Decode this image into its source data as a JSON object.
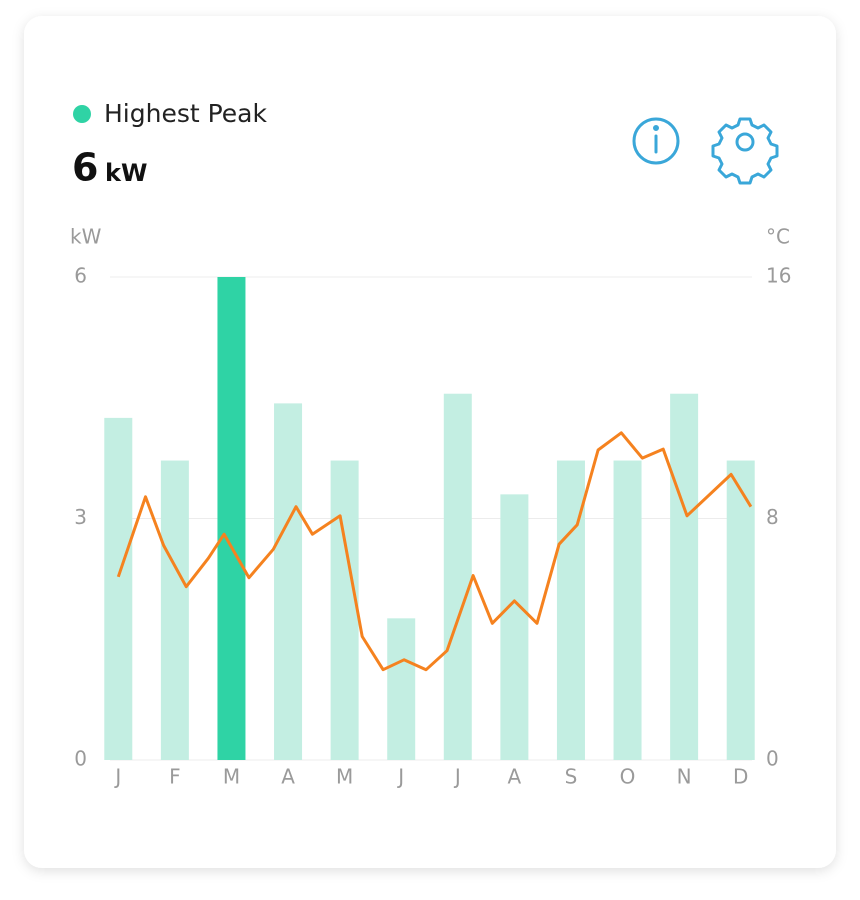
{
  "header": {
    "legend_label": "Highest Peak",
    "peak_value": 6,
    "peak_unit": "kW"
  },
  "chart_data": {
    "type": "bar-line",
    "y_label": "kW",
    "y2_label": "°C",
    "categories": [
      "J",
      "F",
      "M",
      "A",
      "M",
      "J",
      "J",
      "A",
      "S",
      "O",
      "N",
      "D"
    ],
    "series": [
      {
        "color": "#c3eee2",
        "highlight_color": "#2fd3a5",
        "values": [
          4.25,
          3.72,
          6,
          4.43,
          3.72,
          1.76,
          4.55,
          3.3,
          3.72,
          3.72,
          4.55,
          3.72
        ]
      },
      {
        "color": "#f5821f",
        "axis": "y2",
        "x": [
          0,
          0.48,
          0.8,
          1.2,
          1.59,
          1.87,
          2.31,
          2.74,
          3.14,
          3.43,
          3.92,
          4.31,
          4.68,
          5.05,
          5.44,
          5.81,
          6.27,
          6.61,
          7.0,
          7.4,
          7.79,
          8.11,
          8.48,
          8.89,
          9.26,
          9.63,
          10.05,
          10.83,
          11.18
        ],
        "values": [
          6.07,
          8.72,
          7.11,
          5.74,
          6.68,
          7.48,
          6.04,
          6.98,
          8.39,
          7.48,
          8.09,
          4.09,
          2.99,
          3.32,
          2.99,
          3.62,
          6.11,
          4.53,
          5.27,
          4.53,
          7.15,
          7.79,
          10.27,
          10.84,
          10.0,
          10.3,
          8.09,
          9.46,
          8.39
        ]
      }
    ],
    "ylim": [
      0,
      6
    ],
    "yticks": [
      0,
      3,
      6
    ],
    "y2lim": [
      0,
      16
    ],
    "y2ticks": [
      0,
      8,
      16
    ],
    "grid": true
  }
}
